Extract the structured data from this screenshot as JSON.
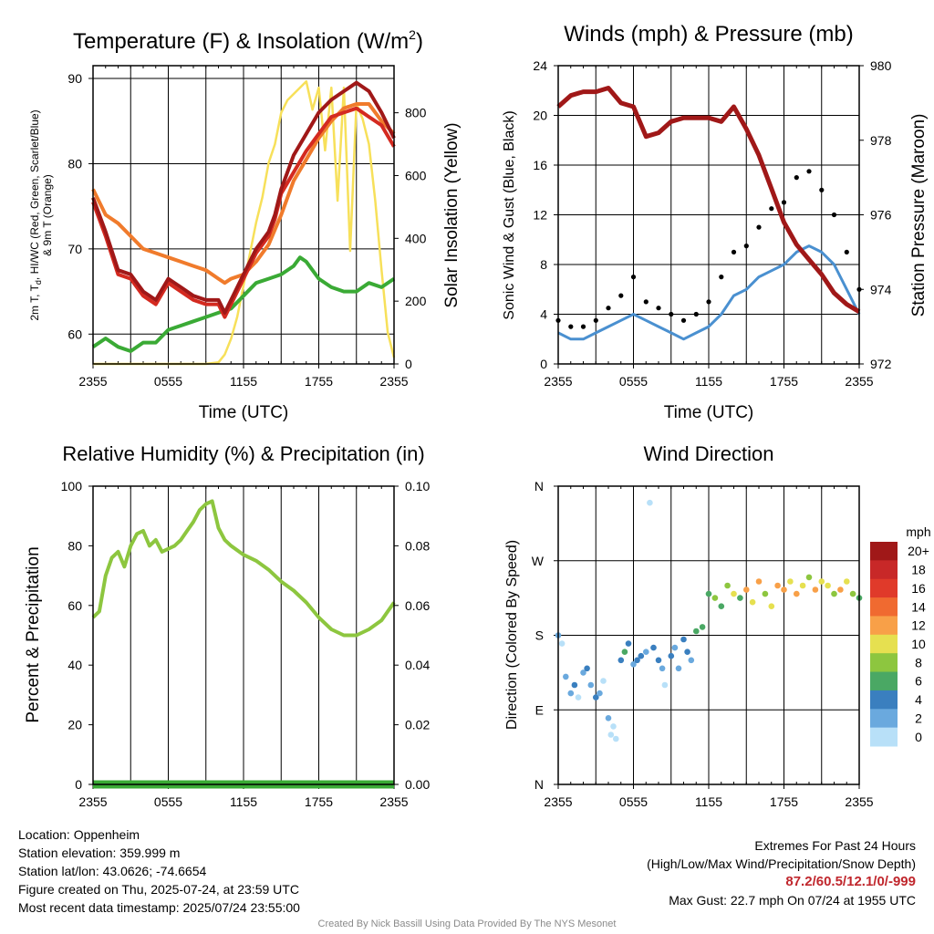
{
  "footer": {
    "location": "Location: Oppenheim",
    "elevation": "Station elevation: 359.999 m",
    "latlon": "Station lat/lon: 43.0626; -74.6654",
    "created": "Figure created on Thu, 2025-07-24, at 23:59 UTC",
    "recent": "Most recent data timestamp: 2025/07/24 23:55:00",
    "extremes_title": "Extremes For Past 24 Hours",
    "extremes_subtitle": "(High/Low/Max Wind/Precipitation/Snow Depth)",
    "extremes_values": "87.2/60.5/12.1/0/-999",
    "max_gust": "Max Gust: 22.7 mph On 07/24 at 1955 UTC",
    "credit": "Created By Nick Bassill Using Data Provided By The NYS Mesonet"
  },
  "colors": {
    "temp": "#a01818",
    "dewpoint": "#3aaa35",
    "heat_index": "#d42a20",
    "temp9m": "#f07b2c",
    "insolation": "#f7e05a",
    "wind": "#4a90d0",
    "gust": "#000000",
    "pressure": "#a01818",
    "humidity": "#8dc63f",
    "precip": "#3aaa35"
  },
  "chart_data": [
    {
      "type": "line",
      "title": "Temperature (F) & Insolation (W/m",
      "title_sup": "2",
      "title_close": ")",
      "xlabel": "Time (UTC)",
      "ylabel": "2m T, T",
      "ylabel_sub": "d",
      "ylabel_rest": ", HI/WC (Red, Green, Scarlet/Blue)",
      "ylabel_line2": "& 9m T (Orange)",
      "y2label": "Solar Insolation (Yellow)",
      "xticks": [
        "2355",
        "0555",
        "1155",
        "1755",
        "2355"
      ],
      "yticks": [
        60,
        70,
        80,
        90
      ],
      "y2ticks": [
        0,
        200,
        400,
        600,
        800
      ],
      "ylim": [
        56.5,
        91.5
      ],
      "y2lim": [
        0,
        950
      ],
      "xlim": [
        0,
        24
      ],
      "series": [
        {
          "name": "2m T",
          "axis": "left",
          "color": "#a01818",
          "x": [
            0,
            1,
            2,
            3,
            4,
            5,
            6,
            7,
            8,
            9,
            10,
            10.5,
            11,
            12,
            13,
            14,
            14.5,
            15,
            16,
            17,
            18,
            19,
            20,
            21,
            22,
            23,
            24
          ],
          "y": [
            76,
            72,
            67.5,
            67,
            65,
            64,
            66.5,
            65.5,
            64.5,
            64,
            64,
            62.5,
            64,
            67,
            70,
            72,
            74,
            77,
            81,
            83.5,
            86,
            87.5,
            88.5,
            89.5,
            88.5,
            86,
            83
          ]
        },
        {
          "name": "Dew Point",
          "axis": "left",
          "color": "#3aaa35",
          "x": [
            0,
            1,
            2,
            3,
            4,
            5,
            6,
            7,
            8,
            9,
            10,
            11,
            12,
            13,
            14,
            15,
            16,
            16.5,
            17,
            18,
            19,
            20,
            21,
            22,
            23,
            24
          ],
          "y": [
            58.5,
            59.5,
            58.5,
            58,
            59,
            59,
            60.5,
            61,
            61.5,
            62,
            62.5,
            63,
            64.5,
            66,
            66.5,
            67,
            68,
            69,
            68.5,
            66.5,
            65.5,
            65,
            65,
            66,
            65.5,
            66.5
          ]
        },
        {
          "name": "Heat Index",
          "axis": "left",
          "color": "#d42a20",
          "x": [
            0,
            1,
            2,
            3,
            4,
            5,
            6,
            7,
            8,
            9,
            10,
            10.5,
            11,
            12,
            13,
            14,
            14.5,
            15,
            16,
            17,
            18,
            19,
            20,
            21,
            22,
            23,
            24
          ],
          "y": [
            75.5,
            71.5,
            67,
            66.5,
            64.5,
            63.5,
            66,
            65,
            64,
            63.5,
            63.5,
            62,
            63.5,
            66.5,
            69.5,
            71.5,
            73.5,
            76.5,
            79,
            81.5,
            83.5,
            85.5,
            86,
            86.5,
            85.5,
            84.5,
            82
          ]
        },
        {
          "name": "9m T",
          "axis": "left",
          "color": "#f07b2c",
          "x": [
            0,
            1,
            2,
            3,
            4,
            5,
            6,
            7,
            8,
            9,
            10,
            10.5,
            11,
            12,
            13,
            14,
            15,
            16,
            17,
            18,
            19,
            20,
            21,
            22,
            23,
            24
          ],
          "y": [
            77,
            74,
            73,
            71.5,
            70,
            69.5,
            69,
            68.5,
            68,
            67.5,
            66.5,
            66,
            66.5,
            67,
            68.5,
            70.5,
            74,
            78,
            80.5,
            83,
            85,
            86.5,
            87,
            87,
            85,
            83.5
          ]
        },
        {
          "name": "Solar Insolation",
          "axis": "right",
          "color": "#f7e05a",
          "x": [
            0,
            9,
            10,
            10.5,
            11,
            11.5,
            12,
            13,
            13.5,
            14,
            14.5,
            15,
            15.5,
            16,
            16.5,
            17,
            17.5,
            18,
            18.5,
            19,
            19.5,
            20,
            20.5,
            21,
            21.5,
            22,
            22.5,
            23,
            23.5,
            24
          ],
          "y": [
            0,
            0,
            5,
            30,
            80,
            150,
            250,
            450,
            530,
            640,
            700,
            800,
            840,
            860,
            880,
            900,
            810,
            880,
            680,
            880,
            520,
            880,
            360,
            830,
            780,
            700,
            520,
            300,
            100,
            20
          ]
        }
      ]
    },
    {
      "type": "line",
      "title": "Winds (mph) & Pressure (mb)",
      "xlabel": "Time (UTC)",
      "ylabel": "Sonic Wind & Gust (Blue, Black)",
      "y2label": "Station Pressure (Maroon)",
      "xticks": [
        "2355",
        "0555",
        "1155",
        "1755",
        "2355"
      ],
      "yticks": [
        0,
        4,
        8,
        12,
        16,
        20,
        24
      ],
      "y2ticks": [
        972,
        974,
        976,
        978,
        980
      ],
      "ylim": [
        0,
        24
      ],
      "y2lim": [
        972,
        980
      ],
      "xlim": [
        0,
        24
      ],
      "series": [
        {
          "name": "Sonic Wind",
          "axis": "left",
          "color": "#4a90d0",
          "x": [
            0,
            1,
            2,
            3,
            4,
            5,
            6,
            7,
            8,
            9,
            10,
            11,
            12,
            13,
            14,
            15,
            16,
            17,
            18,
            19,
            20,
            21,
            22,
            23,
            24
          ],
          "y": [
            2.5,
            2,
            2,
            2.5,
            3,
            3.5,
            4,
            3.5,
            3,
            2.5,
            2,
            2.5,
            3,
            4,
            5.5,
            6,
            7,
            7.5,
            8,
            9,
            9.5,
            9,
            8,
            6,
            4
          ]
        },
        {
          "name": "Gust",
          "axis": "left",
          "color": "#000000",
          "x": [
            0,
            1,
            2,
            3,
            4,
            5,
            6,
            7,
            8,
            9,
            10,
            11,
            12,
            13,
            14,
            15,
            16,
            17,
            18,
            19,
            20,
            21,
            22,
            23,
            24
          ],
          "y": [
            3.5,
            3,
            3,
            3.5,
            4.5,
            5.5,
            7,
            5,
            4.5,
            4,
            3.5,
            4,
            5,
            7,
            9,
            9.5,
            11,
            12.5,
            13,
            15,
            15.5,
            14,
            12,
            9,
            6
          ]
        },
        {
          "name": "Station Pressure",
          "axis": "right",
          "color": "#a01818",
          "x": [
            0,
            1,
            2,
            3,
            4,
            5,
            6,
            7,
            8,
            9,
            10,
            11,
            12,
            13,
            14,
            15,
            16,
            17,
            18,
            19,
            20,
            21,
            22,
            23,
            24
          ],
          "y": [
            978.9,
            979.2,
            979.3,
            979.3,
            979.4,
            979.0,
            978.9,
            978.1,
            978.2,
            978.5,
            978.6,
            978.6,
            978.6,
            978.5,
            978.9,
            978.3,
            977.6,
            976.7,
            975.8,
            975.2,
            974.8,
            974.4,
            973.9,
            973.6,
            973.4
          ]
        }
      ]
    },
    {
      "type": "line",
      "title": "Relative Humidity (%) & Precipitation (in)",
      "ylabel": "Percent & Precipitation",
      "xticks": [
        "2355",
        "0555",
        "1155",
        "1755",
        "2355"
      ],
      "yticks": [
        0,
        20,
        40,
        60,
        80,
        100
      ],
      "y2ticks": [
        "0.00",
        "0.02",
        "0.04",
        "0.06",
        "0.08",
        "0.10"
      ],
      "ylim": [
        0,
        100
      ],
      "y2lim": [
        0,
        0.1
      ],
      "xlim": [
        0,
        24
      ],
      "series": [
        {
          "name": "Relative Humidity",
          "axis": "left",
          "color": "#8dc63f",
          "x": [
            0,
            0.5,
            1,
            1.5,
            2,
            2.5,
            3,
            3.5,
            4,
            4.5,
            5,
            5.5,
            6,
            6.5,
            7,
            7.5,
            8,
            8.5,
            9,
            9.5,
            10,
            10.5,
            11,
            12,
            13,
            14,
            15,
            16,
            17,
            18,
            19,
            20,
            21,
            22,
            23,
            24
          ],
          "y": [
            56,
            58,
            70,
            76,
            78,
            73,
            80,
            84,
            85,
            80,
            82,
            78,
            79,
            80,
            82,
            85,
            88,
            92,
            94,
            95,
            86,
            82,
            80,
            77,
            75,
            72,
            68,
            65,
            61,
            56,
            52,
            50,
            50,
            52,
            55,
            61
          ]
        },
        {
          "name": "Precipitation",
          "axis": "right",
          "color": "#3aaa35",
          "x": [
            0,
            24
          ],
          "y": [
            0,
            0
          ]
        }
      ]
    },
    {
      "type": "scatter",
      "title": "Wind Direction",
      "ylabel": "Direction (Colored By Speed)",
      "xticks": [
        "2355",
        "0555",
        "1155",
        "1755",
        "2355"
      ],
      "yticks": [
        "N",
        "E",
        "S",
        "W",
        "N"
      ],
      "ylim": [
        0,
        360
      ],
      "xlim": [
        0,
        24
      ],
      "legend_title": "mph",
      "legend_labels": [
        "20+",
        "18",
        "16",
        "14",
        "12",
        "10",
        "8",
        "6",
        "4",
        "2",
        "0"
      ],
      "legend_colors": [
        "#a01818",
        "#c82828",
        "#e03a2a",
        "#f06a30",
        "#f8a048",
        "#e6e050",
        "#8dc63f",
        "#4aa864",
        "#3a7fbf",
        "#6aa9de",
        "#b8e0f8"
      ],
      "series": [
        {
          "name": "Direction",
          "description": "direction in degrees colored by speed band index",
          "x": [
            0,
            0.3,
            0.6,
            1,
            1.3,
            1.6,
            2,
            2.3,
            2.6,
            3,
            3.3,
            3.6,
            4,
            4.2,
            4.4,
            4.6,
            5,
            5.3,
            5.6,
            6,
            6.3,
            6.6,
            7,
            7.3,
            7.6,
            8,
            8.3,
            8.5,
            9,
            9.3,
            9.6,
            10,
            10.3,
            10.6,
            11,
            11.5,
            12,
            12.5,
            13,
            13.5,
            14,
            14.5,
            15,
            15.5,
            16,
            16.5,
            17,
            17.5,
            18,
            18.5,
            19,
            19.5,
            20,
            20.5,
            21,
            21.5,
            22,
            22.5,
            23,
            23.5,
            24
          ],
          "y": [
            180,
            170,
            130,
            110,
            120,
            105,
            135,
            140,
            120,
            105,
            110,
            125,
            80,
            60,
            70,
            55,
            150,
            160,
            170,
            145,
            150,
            155,
            160,
            340,
            165,
            150,
            140,
            120,
            155,
            165,
            140,
            175,
            160,
            150,
            185,
            190,
            230,
            225,
            215,
            240,
            230,
            225,
            235,
            220,
            245,
            230,
            215,
            240,
            235,
            245,
            230,
            240,
            250,
            235,
            245,
            240,
            230,
            235,
            245,
            230,
            225
          ],
          "c": [
            1,
            0,
            1,
            1,
            2,
            0,
            1,
            2,
            1,
            2,
            1,
            0,
            1,
            0,
            0,
            0,
            2,
            3,
            2,
            1,
            2,
            2,
            1,
            0,
            2,
            2,
            1,
            0,
            2,
            1,
            1,
            2,
            2,
            1,
            3,
            3,
            3,
            4,
            3,
            4,
            5,
            3,
            6,
            5,
            6,
            4,
            5,
            6,
            6,
            5,
            6,
            5,
            4,
            6,
            5,
            5,
            4,
            6,
            5,
            4,
            3
          ]
        }
      ]
    }
  ]
}
